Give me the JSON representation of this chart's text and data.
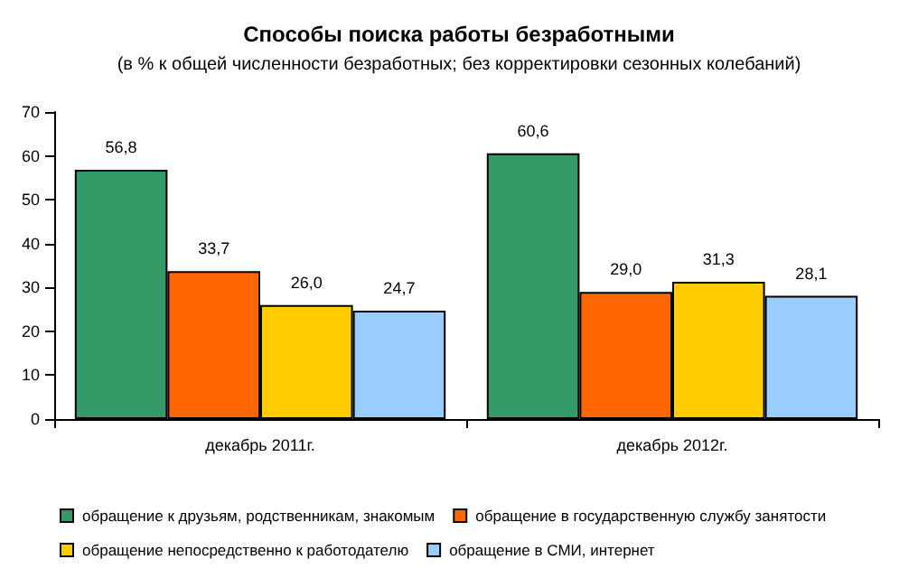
{
  "chart_data": {
    "type": "bar",
    "title": "Способы поиска работы безработными",
    "subtitle": "(в % к общей численности безработных; без корректировки сезонных колебаний)",
    "categories": [
      "декабрь 2011г.",
      "декабрь 2012г."
    ],
    "series": [
      {
        "name": "обращение к друзьям, родственникам, знакомым",
        "color": "#339966",
        "values": [
          56.8,
          60.6
        ],
        "value_labels": [
          "56,8",
          "60,6"
        ]
      },
      {
        "name": "обращение в государственную службу занятости",
        "color": "#ff6600",
        "values": [
          33.7,
          29.0
        ],
        "value_labels": [
          "33,7",
          "29,0"
        ]
      },
      {
        "name": "обращение непосредственно к работодателю",
        "color": "#ffcc00",
        "values": [
          26.0,
          31.3
        ],
        "value_labels": [
          "26,0",
          "31,3"
        ]
      },
      {
        "name": "обращение в СМИ, интернет",
        "color": "#99ccff",
        "values": [
          24.7,
          28.1
        ],
        "value_labels": [
          "24,7",
          "28,1"
        ]
      }
    ],
    "ylim": [
      0,
      70
    ],
    "yticks": [
      0,
      10,
      20,
      30,
      40,
      50,
      60,
      70
    ],
    "grid": false,
    "legend": "bottom"
  }
}
